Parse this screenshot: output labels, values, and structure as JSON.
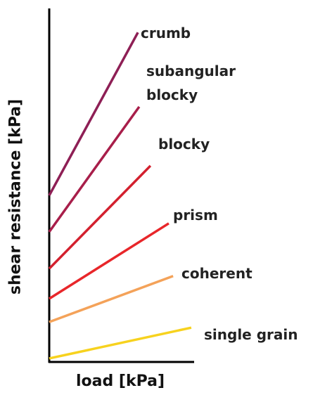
{
  "chart_data": {
    "type": "line",
    "xlabel": "load [kPa]",
    "ylabel": "shear resistance [kPa]",
    "xlim": [
      0,
      100
    ],
    "ylim": [
      0,
      100
    ],
    "series": [
      {
        "name": "crumb",
        "color": "#8e1f55",
        "x": [
          0,
          61.5
        ],
        "values": [
          47.1,
          93.2
        ]
      },
      {
        "name": "subangular blocky",
        "color": "#a81e4a",
        "x": [
          0,
          62.4
        ],
        "values": [
          36.8,
          72.2
        ]
      },
      {
        "name": "blocky",
        "color": "#d3202e",
        "x": [
          0,
          70.2
        ],
        "values": [
          26.4,
          55.5
        ]
      },
      {
        "name": "prism",
        "color": "#e8262a",
        "x": [
          0,
          82.9
        ],
        "values": [
          17.9,
          39.2
        ]
      },
      {
        "name": "coherent",
        "color": "#f4a259",
        "x": [
          0,
          85.9
        ],
        "values": [
          11.3,
          24.3
        ]
      },
      {
        "name": "single grain",
        "color": "#f7d21e",
        "x": [
          0,
          98.5
        ],
        "values": [
          1.0,
          9.7
        ]
      }
    ]
  }
}
